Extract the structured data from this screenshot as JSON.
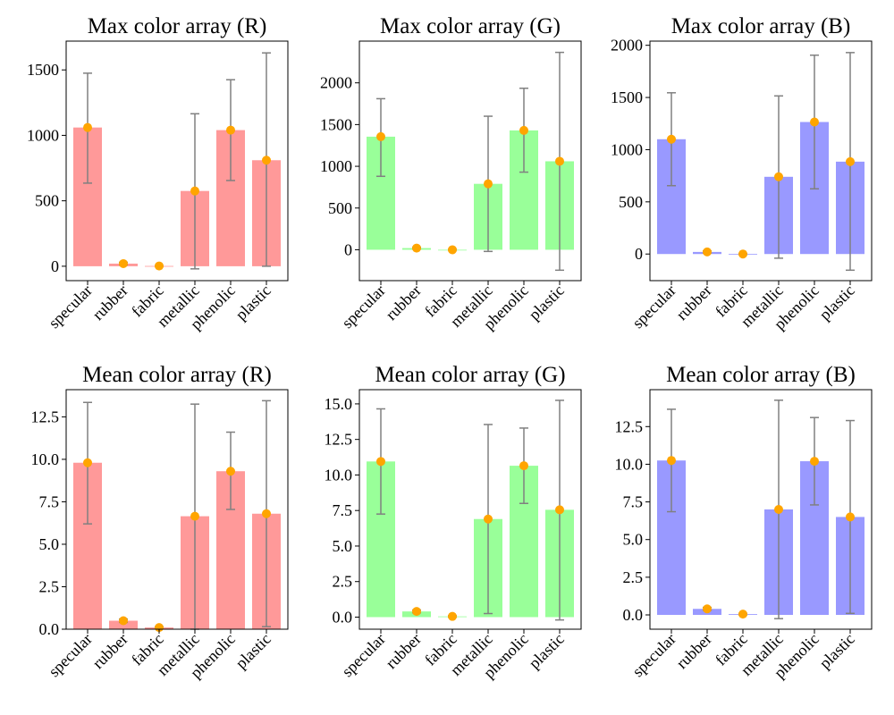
{
  "colors": {
    "R": "#ff9999",
    "G": "#99ff99",
    "B": "#9999ff",
    "error_bar": "#808080",
    "marker": "#ffa500"
  },
  "chart_data": [
    {
      "type": "bar",
      "title": "Max color array (R)",
      "channel": "R",
      "categories": [
        "specular",
        "rubber",
        "fabric",
        "metallic",
        "phenolic",
        "plastic"
      ],
      "values": [
        1060,
        20,
        2,
        575,
        1040,
        810
      ],
      "err_low": [
        635,
        10,
        0,
        -20,
        655,
        0
      ],
      "err_high": [
        1475,
        30,
        4,
        1165,
        1425,
        1630
      ],
      "ylim": [
        -110,
        1720
      ],
      "yticks": [
        0,
        500,
        1000,
        1500
      ],
      "ytick_labels": [
        "0",
        "500",
        "1000",
        "1500"
      ],
      "xlabel": "",
      "ylabel": ""
    },
    {
      "type": "bar",
      "title": "Max color array (G)",
      "channel": "G",
      "categories": [
        "specular",
        "rubber",
        "fabric",
        "metallic",
        "phenolic",
        "plastic"
      ],
      "values": [
        1355,
        20,
        0,
        790,
        1430,
        1060
      ],
      "err_low": [
        880,
        10,
        -5,
        -20,
        930,
        -245
      ],
      "err_high": [
        1810,
        30,
        5,
        1600,
        1935,
        2365
      ],
      "ylim": [
        -370,
        2500
      ],
      "yticks": [
        0,
        500,
        1000,
        1500,
        2000
      ],
      "ytick_labels": [
        "0",
        "500",
        "1000",
        "1500",
        "2000"
      ],
      "xlabel": "",
      "ylabel": ""
    },
    {
      "type": "bar",
      "title": "Max color array (B)",
      "channel": "B",
      "categories": [
        "specular",
        "rubber",
        "fabric",
        "metallic",
        "phenolic",
        "plastic"
      ],
      "values": [
        1100,
        20,
        0,
        740,
        1265,
        885
      ],
      "err_low": [
        655,
        10,
        -5,
        -40,
        625,
        -155
      ],
      "err_high": [
        1545,
        30,
        5,
        1515,
        1905,
        1930
      ],
      "ylim": [
        -255,
        2040
      ],
      "yticks": [
        0,
        500,
        1000,
        1500,
        2000
      ],
      "ytick_labels": [
        "0",
        "500",
        "1000",
        "1500",
        "2000"
      ],
      "xlabel": "",
      "ylabel": ""
    },
    {
      "type": "bar",
      "title": "Mean color array (R)",
      "channel": "R",
      "categories": [
        "specular",
        "rubber",
        "fabric",
        "metallic",
        "phenolic",
        "plastic"
      ],
      "values": [
        9.8,
        0.5,
        0.1,
        6.65,
        9.3,
        6.8
      ],
      "err_low": [
        6.2,
        0.4,
        0.05,
        0.0,
        7.05,
        0.15
      ],
      "err_high": [
        13.35,
        0.6,
        0.15,
        13.25,
        11.6,
        13.45
      ],
      "ylim": [
        0,
        14.1
      ],
      "yticks": [
        0,
        2.5,
        5,
        7.5,
        10,
        12.5
      ],
      "ytick_labels": [
        "0.0",
        "2.5",
        "5.0",
        "7.5",
        "10.0",
        "12.5"
      ],
      "xlabel": "",
      "ylabel": ""
    },
    {
      "type": "bar",
      "title": "Mean color array (G)",
      "channel": "G",
      "categories": [
        "specular",
        "rubber",
        "fabric",
        "metallic",
        "phenolic",
        "plastic"
      ],
      "values": [
        10.95,
        0.4,
        0.05,
        6.9,
        10.65,
        7.55
      ],
      "err_low": [
        7.25,
        0.3,
        0.0,
        0.25,
        8.0,
        -0.2
      ],
      "err_high": [
        14.65,
        0.5,
        0.1,
        13.55,
        13.3,
        15.25
      ],
      "ylim": [
        -0.85,
        16.0
      ],
      "yticks": [
        0,
        2.5,
        5,
        7.5,
        10,
        12.5,
        15
      ],
      "ytick_labels": [
        "0.0",
        "2.5",
        "5.0",
        "7.5",
        "10.0",
        "12.5",
        "15.0"
      ],
      "xlabel": "",
      "ylabel": ""
    },
    {
      "type": "bar",
      "title": "Mean color array (B)",
      "channel": "B",
      "categories": [
        "specular",
        "rubber",
        "fabric",
        "metallic",
        "phenolic",
        "plastic"
      ],
      "values": [
        10.25,
        0.4,
        0.05,
        7.0,
        10.2,
        6.5
      ],
      "err_low": [
        6.85,
        0.3,
        0.0,
        -0.25,
        7.3,
        0.1
      ],
      "err_high": [
        13.65,
        0.5,
        0.1,
        14.25,
        13.1,
        12.9
      ],
      "ylim": [
        -0.95,
        14.95
      ],
      "yticks": [
        0,
        2.5,
        5,
        7.5,
        10,
        12.5
      ],
      "ytick_labels": [
        "0.0",
        "2.5",
        "5.0",
        "7.5",
        "10.0",
        "12.5"
      ],
      "xlabel": "",
      "ylabel": ""
    }
  ]
}
